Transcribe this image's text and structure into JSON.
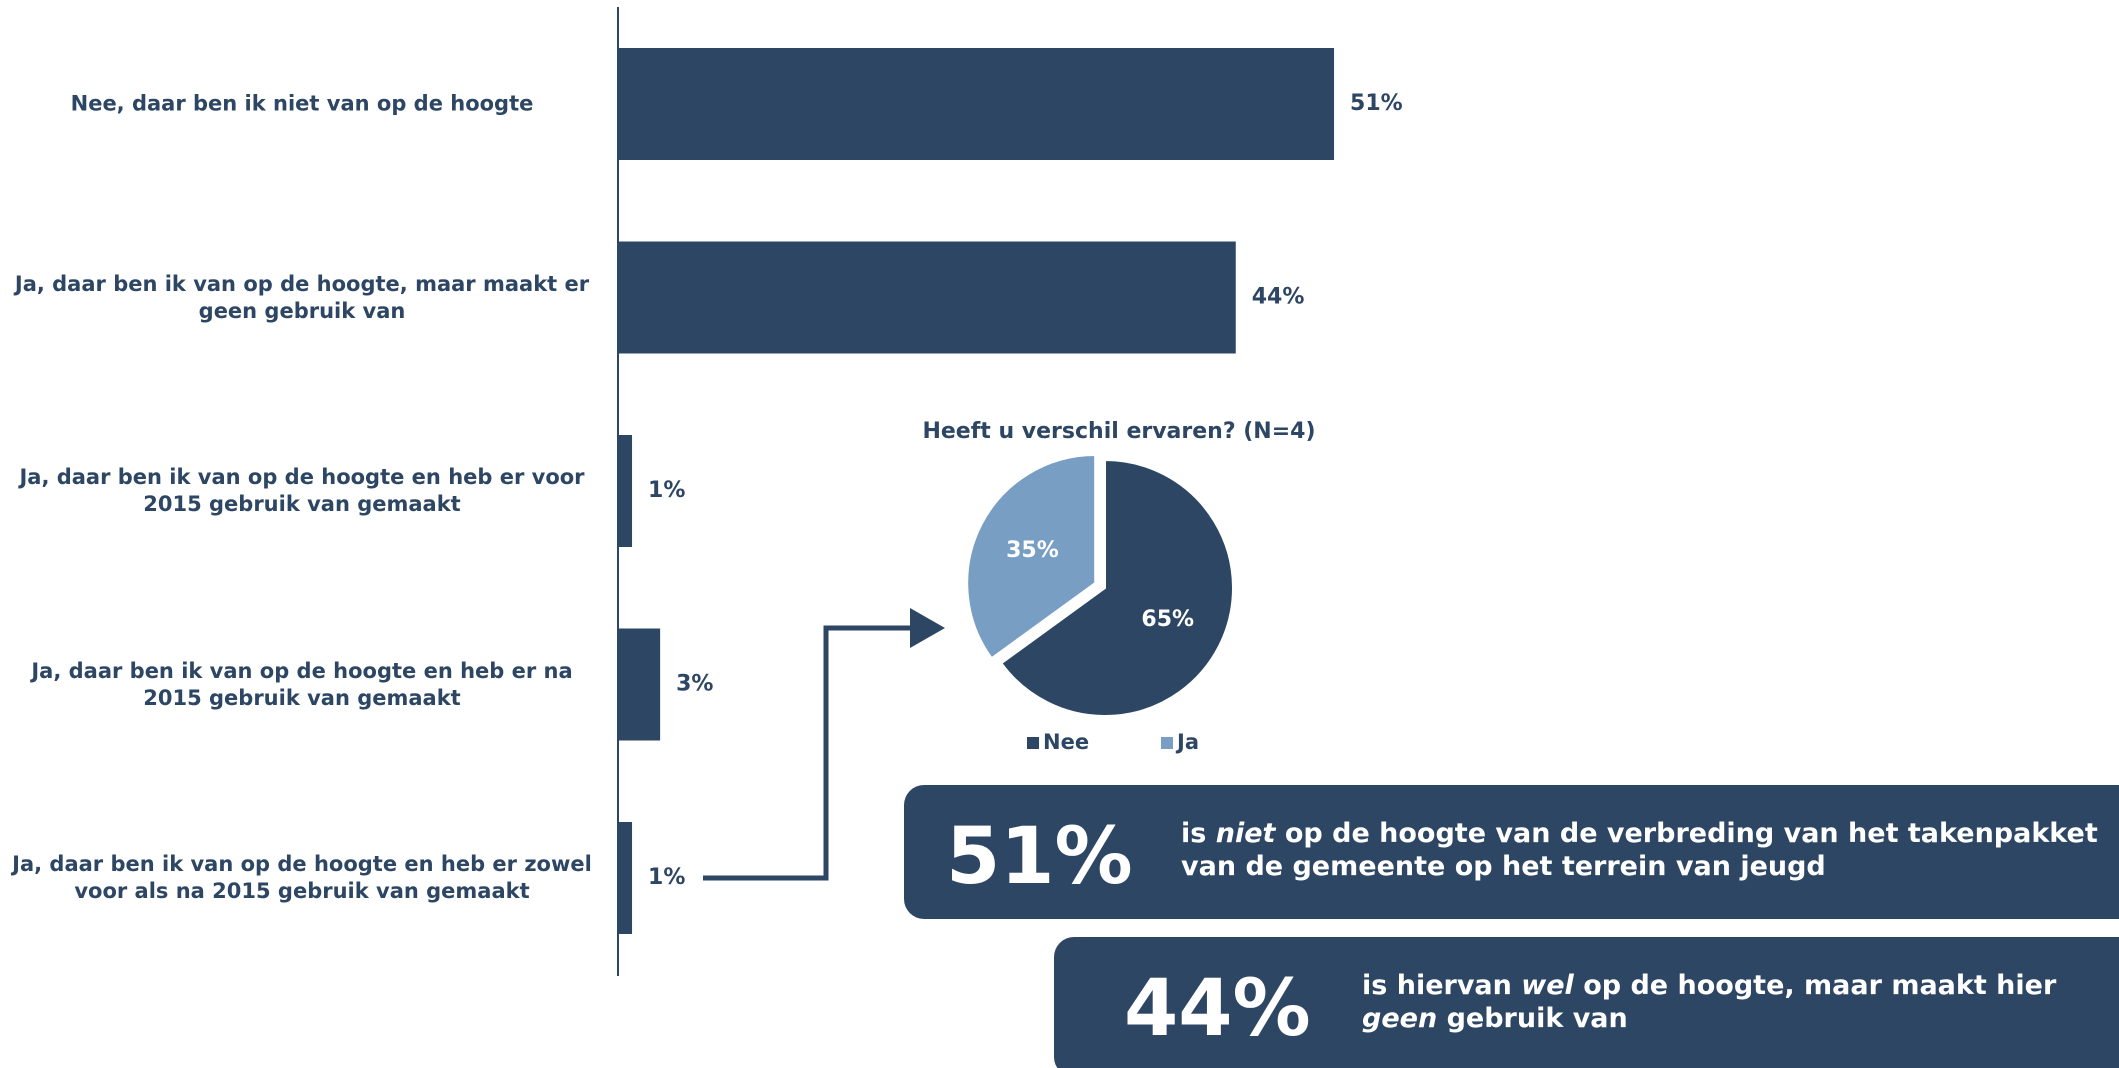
{
  "chart_data": [
    {
      "type": "bar",
      "orientation": "horizontal",
      "color": "#2d4663",
      "categories": [
        "Nee, daar ben ik niet van op de hoogte",
        "Ja, daar ben ik van op de hoogte, maar maakt er geen gebruik van",
        "Ja, daar ben ik van op de hoogte en heb er voor 2015 gebruik van gemaakt",
        "Ja, daar ben ik van op de hoogte en heb er na 2015 gebruik van gemaakt",
        "Ja, daar ben ik van op de hoogte en heb er zowel voor als na 2015 gebruik van gemaakt"
      ],
      "values": [
        51,
        44,
        1,
        3,
        1
      ],
      "value_labels": [
        "51%",
        "44%",
        "1%",
        "3%",
        "1%"
      ],
      "xlim": [
        0,
        100
      ]
    },
    {
      "type": "pie",
      "title": "Heeft u verschil ervaren? (N=4)",
      "categories": [
        "Nee",
        "Ja"
      ],
      "values": [
        65,
        35
      ],
      "value_labels": [
        "65%",
        "35%"
      ],
      "colors": [
        "#2d4663",
        "#789ec4"
      ],
      "legend": "bottom"
    }
  ],
  "callouts": [
    {
      "figure": "51%",
      "text": [
        "is ",
        "niet",
        " op de hoogte van de verbreding van het takenpakket van de gemeente op het terrein van jeugd"
      ]
    },
    {
      "figure": "44%",
      "text": [
        "is hiervan ",
        "wel",
        " op de hoogte, maar maakt hier ",
        "geen",
        " gebruik van"
      ]
    }
  ]
}
